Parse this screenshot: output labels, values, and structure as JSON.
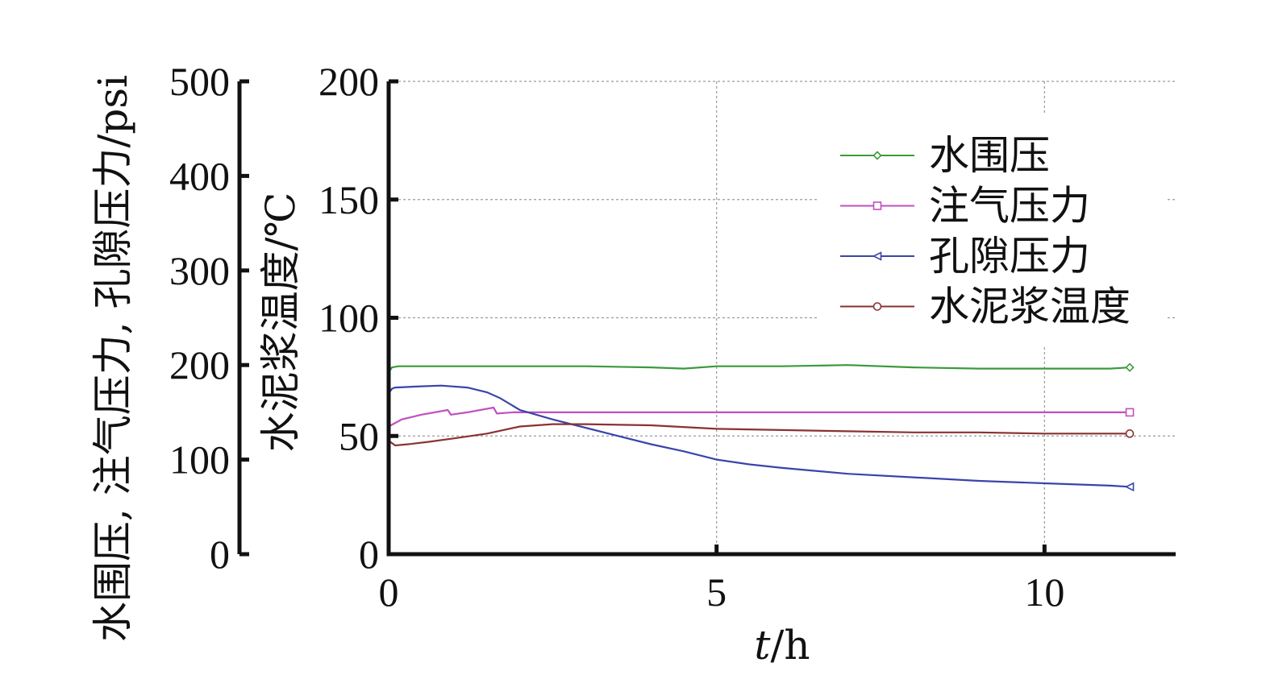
{
  "chart_data": {
    "type": "line",
    "x_axis": {
      "label_italic": "t",
      "label_rest": "/h",
      "range": [
        0,
        12
      ],
      "ticks": [
        0,
        5,
        10
      ],
      "tick_labels": [
        "0",
        "5",
        "10"
      ]
    },
    "y_axis_left": {
      "label": "水围压, 注气压力, 孔隙压力/psi",
      "range": [
        0,
        500
      ],
      "ticks": [
        0,
        100,
        200,
        300,
        400,
        500
      ],
      "tick_labels": [
        "0",
        "100",
        "200",
        "300",
        "400",
        "500"
      ]
    },
    "y_axis_right": {
      "label": "水泥浆温度/℃",
      "range": [
        0,
        200
      ],
      "ticks": [
        0,
        50,
        100,
        150,
        200
      ],
      "tick_labels": [
        "0",
        "50",
        "100",
        "150",
        "200"
      ]
    },
    "grid": true,
    "legend_position": "top-right",
    "series": [
      {
        "name": "水围压",
        "axis": "right",
        "color": "#3a9a3a",
        "marker": "diamond",
        "x": [
          0,
          0.05,
          0.15,
          0.5,
          1,
          2,
          3,
          4,
          4.5,
          5,
          6,
          7,
          8,
          9,
          10,
          11,
          11.3
        ],
        "y": [
          77,
          79,
          79.5,
          79.5,
          79.5,
          79.5,
          79.5,
          79,
          78.5,
          79.5,
          79.5,
          80,
          79,
          78.5,
          78.5,
          78.5,
          79
        ]
      },
      {
        "name": "注气压力",
        "axis": "right",
        "color": "#c050c0",
        "marker": "square",
        "x": [
          0,
          0.2,
          0.5,
          0.9,
          0.95,
          1.2,
          1.6,
          1.65,
          1.9,
          2.5,
          4,
          6,
          8,
          10,
          11.3
        ],
        "y": [
          54,
          57,
          59,
          61,
          59,
          60,
          62,
          59.5,
          60,
          60,
          60,
          60,
          60,
          60,
          60
        ]
      },
      {
        "name": "孔隙压力",
        "axis": "right",
        "color": "#3a44aa",
        "marker": "triangle-left",
        "x": [
          0,
          0.05,
          0.1,
          0.5,
          0.8,
          1.2,
          1.5,
          1.7,
          2.0,
          2.5,
          3,
          3.5,
          4,
          4.5,
          5,
          5.5,
          6,
          7,
          8,
          9,
          10,
          11,
          11.3
        ],
        "y": [
          68,
          70,
          70.5,
          71,
          71.3,
          70.5,
          68.5,
          66,
          61,
          57,
          53.5,
          50,
          46.5,
          43.5,
          40,
          38,
          36.5,
          34,
          32.5,
          31,
          30,
          29,
          28.5
        ]
      },
      {
        "name": "水泥浆温度",
        "axis": "right",
        "color": "#8a3232",
        "marker": "circle",
        "x": [
          0,
          0.1,
          0.3,
          0.6,
          1,
          1.5,
          2,
          2.5,
          3,
          4,
          5,
          6,
          7,
          8,
          9,
          10,
          11,
          11.3
        ],
        "y": [
          48,
          46,
          46.5,
          47.5,
          49,
          51,
          54,
          55,
          55,
          54.5,
          53,
          52.5,
          52,
          51.5,
          51.5,
          51,
          51,
          51
        ]
      }
    ]
  }
}
